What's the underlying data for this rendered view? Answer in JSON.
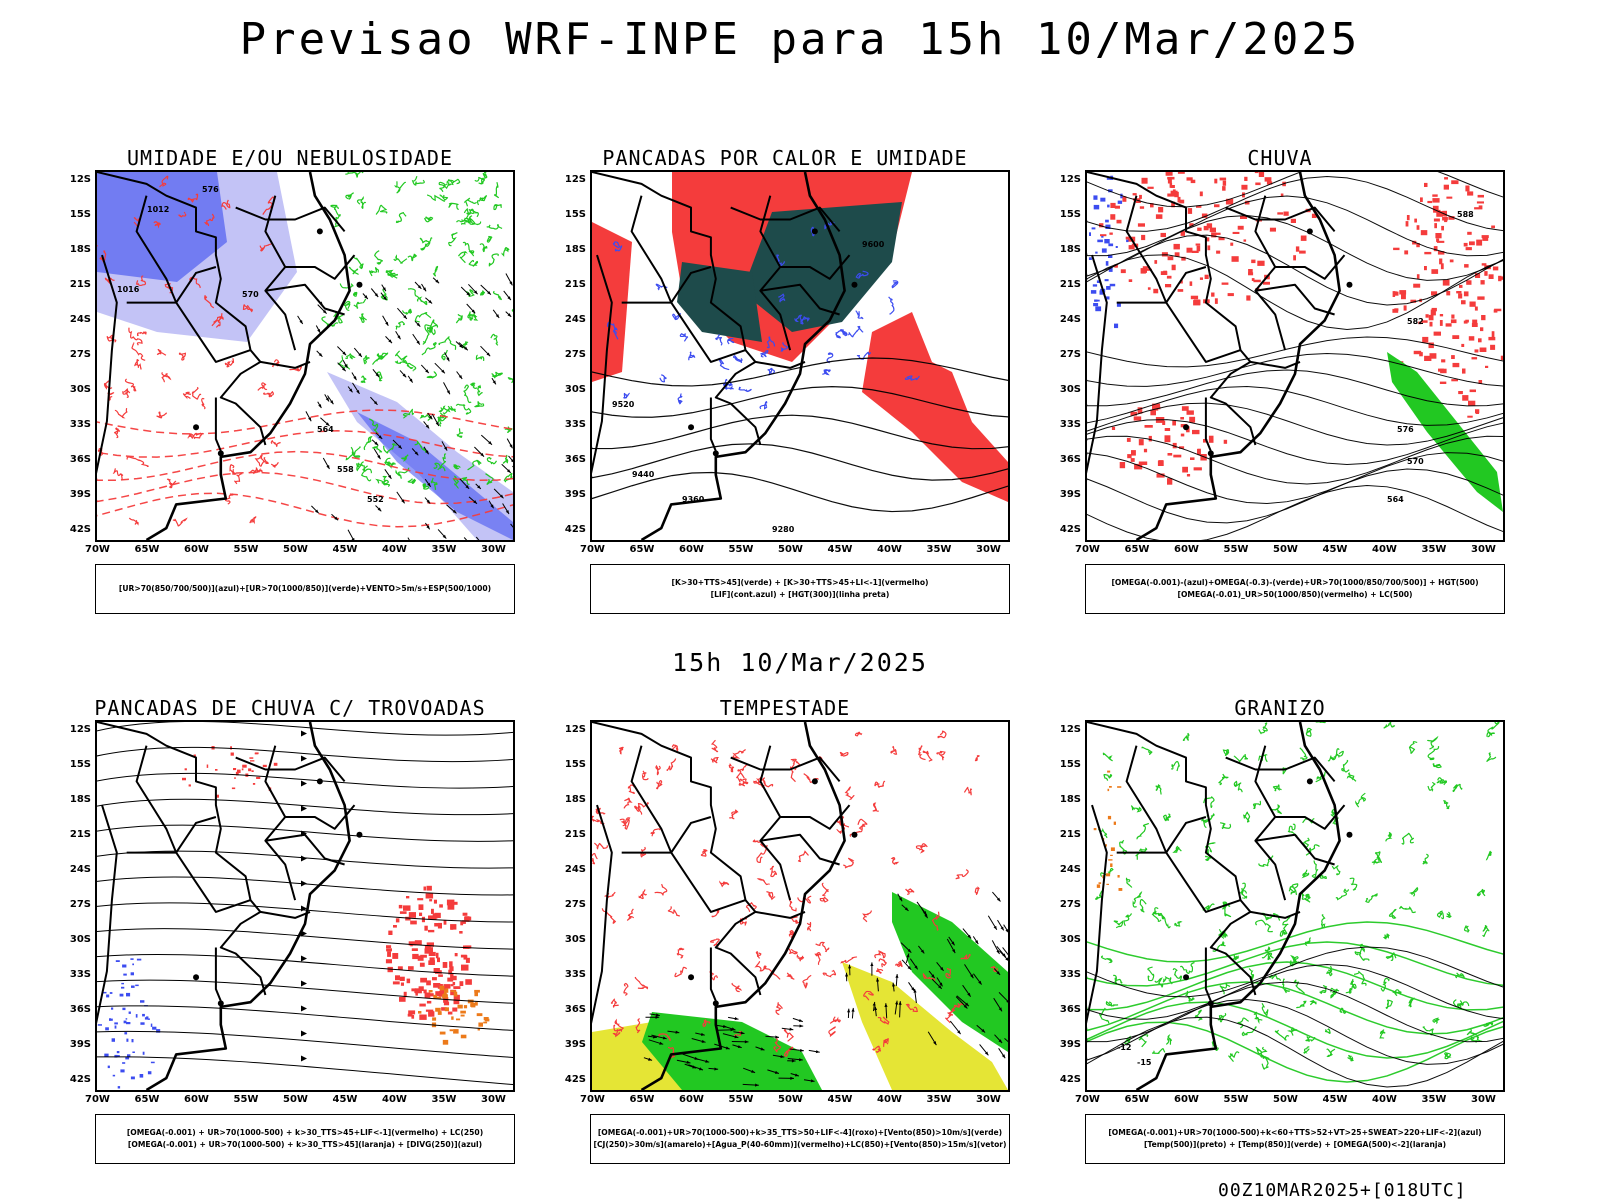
{
  "header": {
    "title": "Previsao WRF-INPE  para 15h 10/Mar/2025"
  },
  "mid_date": "15h 10/Mar/2025",
  "footer": "00Z10MAR2025+[018UTC]",
  "lat_ticks": [
    "12S",
    "15S",
    "18S",
    "21S",
    "24S",
    "27S",
    "30S",
    "33S",
    "36S",
    "39S",
    "42S"
  ],
  "lon_ticks": [
    "70W",
    "65W",
    "60W",
    "55W",
    "50W",
    "45W",
    "40W",
    "35W",
    "30W"
  ],
  "colors": {
    "blue": "#3c4cf0",
    "lightblue": "#b8b8f4",
    "green": "#22c822",
    "red": "#f43c3c",
    "darkteal": "#1e4b4b",
    "yellow": "#e4e42a",
    "orange": "#ec7a1a",
    "purple": "#9a3ccc",
    "black": "#000000"
  },
  "panels": [
    {
      "id": "umidade",
      "title": "UMIDADE E/OU NEBULOSIDADE",
      "legend": [
        "[UR>70(850/700/500)](azul)+[UR>70(1000/850)](verde)+VENTO>5m/s+ESP(500/1000)"
      ],
      "contour_labels": [
        "1012",
        "1016",
        "576",
        "570",
        "564",
        "558",
        "552"
      ]
    },
    {
      "id": "pancadas-calor",
      "title": "PANCADAS POR CALOR E UMIDADE",
      "legend": [
        "[K>30+TTS>45](verde) + [K>30+TTS>45+LI<-1](vermelho)",
        "[LIF](cont.azul) + [HGT(300)](linha preta)"
      ],
      "contour_labels": [
        "9600",
        "9520",
        "9440",
        "9360",
        "9280"
      ]
    },
    {
      "id": "chuva",
      "title": "CHUVA",
      "legend": [
        "[OMEGA(-0.001)-(azul)+OMEGA(-0.3)-(verde)+UR>70(1000/850/700/500)] + HGT(500)",
        "[OMEGA(-0.01)_UR>50(1000/850)(vermelho) + LC(500)"
      ],
      "contour_labels": [
        "588",
        "582",
        "576",
        "570",
        "564"
      ]
    },
    {
      "id": "pancadas-trovoadas",
      "title": "PANCADAS DE CHUVA C/ TROVOADAS",
      "legend": [
        "[OMEGA(-0.001) + UR>70(1000-500) + k>30_TTS>45+LIF<-1](vermelho) + LC(250)",
        "[OMEGA(-0.001) + UR>70(1000-500) + k>30_TTS>45](laranja) + [DIVG(250)](azul)"
      ],
      "contour_labels": []
    },
    {
      "id": "tempestade",
      "title": "TEMPESTADE",
      "legend": [
        "[OMEGA(-0.001)+UR>70(1000-500)+k>35_TTS>50+LIF<-4](roxo)+[Vento(850)>10m/s](verde)",
        "[CJ(250)>30m/s](amarelo)+[Agua_P(40-60mm)](vermelho)+LC(850)+[Vento(850)>15m/s](vetor)"
      ],
      "contour_labels": []
    },
    {
      "id": "granizo",
      "title": "GRANIZO",
      "legend": [
        "[OMEGA(-0.001)+UR>70(1000-500)+k<60+TTS>52+VT>25+SWEAT>220+LIF<-2](azul)",
        "[Temp(500)](preto) + [Temp(850)](verde) + [OMEGA(500)<-2](laranja)"
      ],
      "contour_labels": [
        "-12",
        "-15"
      ]
    }
  ]
}
